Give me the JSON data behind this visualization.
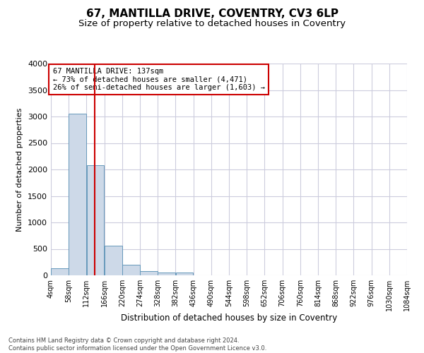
{
  "title1": "67, MANTILLA DRIVE, COVENTRY, CV3 6LP",
  "title2": "Size of property relative to detached houses in Coventry",
  "xlabel": "Distribution of detached houses by size in Coventry",
  "ylabel": "Number of detached properties",
  "annotation_line1": "67 MANTILLA DRIVE: 137sqm",
  "annotation_line2": "← 73% of detached houses are smaller (4,471)",
  "annotation_line3": "26% of semi-detached houses are larger (1,603) →",
  "property_size_sqm": 137,
  "bin_edges": [
    4,
    58,
    112,
    166,
    220,
    274,
    328,
    382,
    436,
    490,
    544,
    598,
    652,
    706,
    760,
    814,
    868,
    922,
    976,
    1030,
    1084
  ],
  "bar_values": [
    130,
    3060,
    2080,
    555,
    195,
    75,
    50,
    50,
    0,
    0,
    0,
    0,
    0,
    0,
    0,
    0,
    0,
    0,
    0,
    0
  ],
  "bar_color": "#cdd9e8",
  "bar_edge_color": "#6699bb",
  "vline_color": "#cc0000",
  "vline_x": 137,
  "ylim": [
    0,
    4000
  ],
  "yticks": [
    0,
    500,
    1000,
    1500,
    2000,
    2500,
    3000,
    3500,
    4000
  ],
  "grid_color": "#ccccdd",
  "footer1": "Contains HM Land Registry data © Crown copyright and database right 2024.",
  "footer2": "Contains public sector information licensed under the Open Government Licence v3.0.",
  "annotation_box_color": "#cc0000",
  "title1_fontsize": 11,
  "title2_fontsize": 9.5,
  "tick_label_fontsize": 7,
  "ylabel_fontsize": 8,
  "xlabel_fontsize": 8.5,
  "footer_fontsize": 6,
  "annotation_fontsize": 7.5
}
